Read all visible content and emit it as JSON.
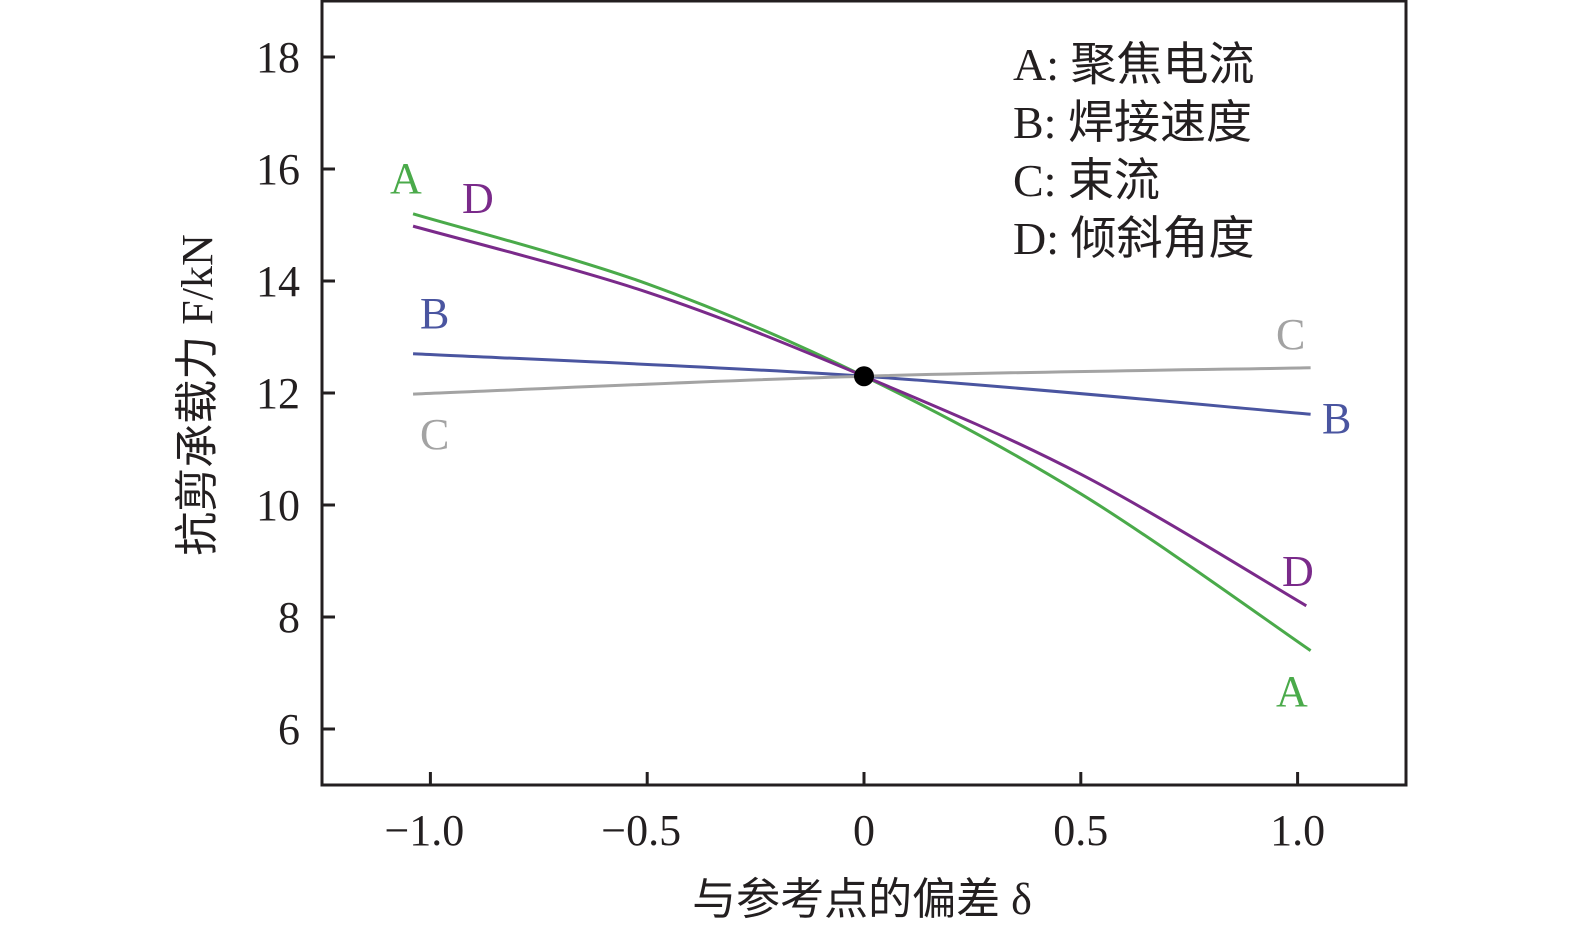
{
  "chart_data": {
    "type": "line",
    "title": "",
    "xlabel": "与参考点的偏差 δ",
    "ylabel": "抗剪承载力 F/kN",
    "xlim": [
      -1.25,
      1.25
    ],
    "ylim": [
      5.0,
      19.0
    ],
    "grid": false,
    "xticks": [
      -1.0,
      -0.5,
      0,
      0.5,
      1.0
    ],
    "xtick_labels": [
      "−1.0",
      "−0.5",
      "0",
      "0.5",
      "1.0"
    ],
    "yticks": [
      6,
      8,
      10,
      12,
      14,
      16,
      18
    ],
    "ytick_labels": [
      "6",
      "8",
      "10",
      "12",
      "14",
      "16",
      "18"
    ],
    "legend_placement": "top-right",
    "legend": [
      "A: 聚焦电流",
      "B: 焊接速度",
      "C: 束流",
      "D: 倾斜角度"
    ],
    "reference_point": {
      "x": 0,
      "y": 12.3
    },
    "series": [
      {
        "name": "A",
        "label": "A",
        "color": "#4aaa4a",
        "x": [
          -1.04,
          -0.5,
          0,
          0.5,
          1.03
        ],
        "y": [
          15.2,
          13.95,
          12.3,
          10.2,
          7.4
        ]
      },
      {
        "name": "B",
        "label": "B",
        "color": "#4a55a0",
        "x": [
          -1.04,
          0,
          1.03
        ],
        "y": [
          12.7,
          12.3,
          11.62
        ]
      },
      {
        "name": "C",
        "label": "C",
        "color": "#a3a3a3",
        "x": [
          -1.04,
          0,
          1.03
        ],
        "y": [
          11.98,
          12.3,
          12.45
        ]
      },
      {
        "name": "D",
        "label": "D",
        "color": "#7a2a8a",
        "x": [
          -1.04,
          -0.5,
          0,
          0.5,
          1.02
        ],
        "y": [
          14.98,
          13.8,
          12.3,
          10.55,
          8.2
        ]
      }
    ]
  }
}
